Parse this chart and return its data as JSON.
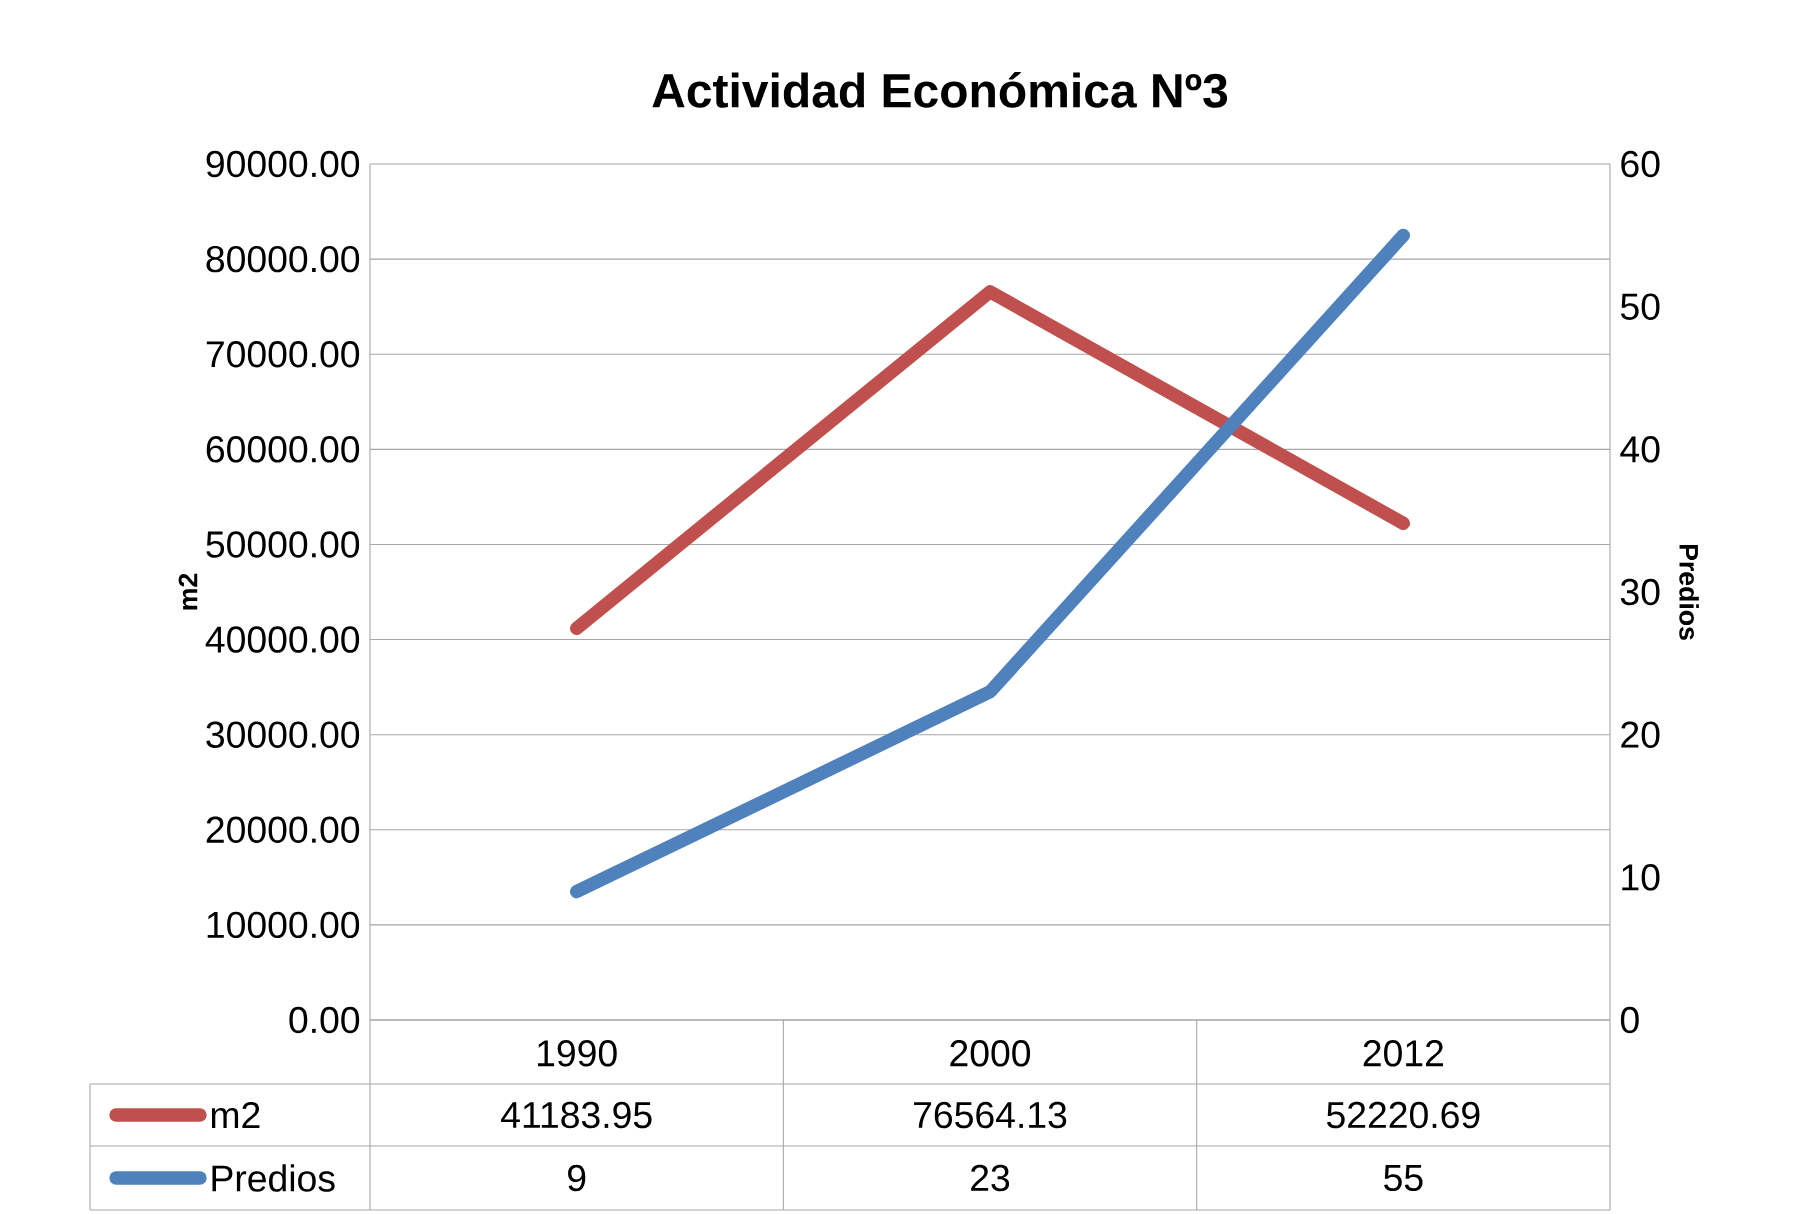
{
  "chart_data": {
    "type": "line",
    "title": "Actividad Económica Nº3",
    "ylabel": "m2",
    "y2label": "Predios",
    "categories": [
      "1990",
      "2000",
      "2012"
    ],
    "series": [
      {
        "name": "m2",
        "color": "#c0504d",
        "values": [
          41183.95,
          76564.13,
          52220.69
        ]
      },
      {
        "name": "Predios",
        "color": "#4f81bd",
        "values": [
          9,
          23,
          55
        ],
        "axis": "y2"
      }
    ],
    "ylim": [
      0,
      90000
    ],
    "yticks": [
      {
        "value": 0,
        "label": "0.00"
      },
      {
        "value": 10000,
        "label": "10000.00"
      },
      {
        "value": 20000,
        "label": "20000.00"
      },
      {
        "value": 30000,
        "label": "30000.00"
      },
      {
        "value": 40000,
        "label": "40000.00"
      },
      {
        "value": 50000,
        "label": "50000.00"
      },
      {
        "value": 60000,
        "label": "60000.00"
      },
      {
        "value": 70000,
        "label": "70000.00"
      },
      {
        "value": 80000,
        "label": "80000.00"
      },
      {
        "value": 90000,
        "label": "90000.00"
      }
    ],
    "y2lim": [
      0,
      60
    ],
    "y2ticks": [
      0,
      10,
      20,
      30,
      40,
      50,
      60
    ],
    "grid": "y",
    "legend": "bottom",
    "data_labels": true,
    "marker": "none",
    "line_style": "solid"
  }
}
